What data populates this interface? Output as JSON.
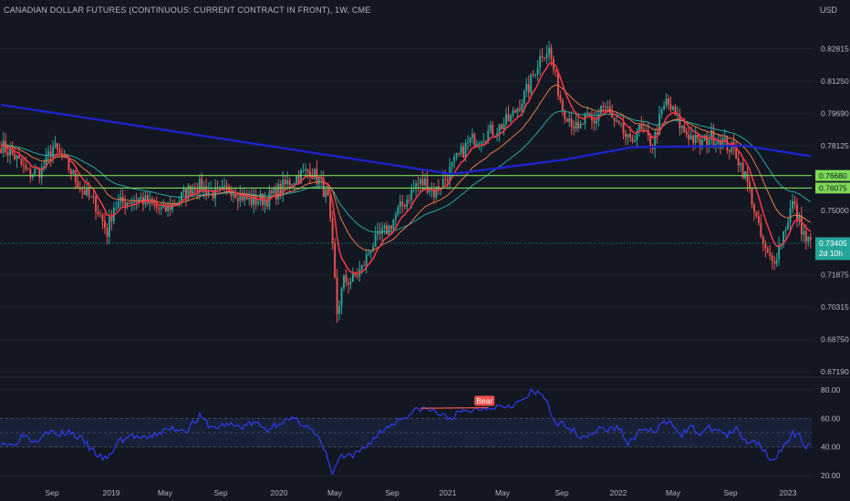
{
  "header": {
    "title": "CANADIAN DOLLAR FUTURES (CONTINUOUS: CURRENT CONTRACT IN FRONT), 1W, CME",
    "currency": "USD"
  },
  "colors": {
    "background": "#131722",
    "up": "#26a69a",
    "down": "#ef5350",
    "ma_fast": "#f23645",
    "ma_mid": "#e57a47",
    "ma_slow": "#26a69a",
    "ma_long": "#1d22c9",
    "level_line": "#7ed957",
    "rsi": "#2f3bf0",
    "bear_tag": "#ef5350",
    "last_price_tag": "#26a69a"
  },
  "chart_data": [
    {
      "type": "candlestick",
      "timeframe": "1W",
      "ylim": [
        0.6719,
        0.8438
      ],
      "y_ticks": [
        "0.82815",
        "0.81250",
        "0.79690",
        "0.78125",
        "0.76680",
        "0.76075",
        "0.75000",
        "0.73405",
        "0.71875",
        "0.70315",
        "0.68750",
        "0.67190"
      ],
      "x_ticks": [
        "Sep",
        "2019",
        "May",
        "Sep",
        "2020",
        "May",
        "Sep",
        "2021",
        "May",
        "Sep",
        "2022",
        "May",
        "Sep",
        "2023"
      ],
      "horizontal_levels": [
        0.7668,
        0.76075
      ],
      "last_price": {
        "value": "0.73405",
        "countdown": "2d 10h"
      },
      "anchors": [
        [
          0,
          0.7815
        ],
        [
          6,
          0.776
        ],
        [
          12,
          0.7675
        ],
        [
          18,
          0.7695
        ],
        [
          23,
          0.7805
        ],
        [
          28,
          0.774
        ],
        [
          35,
          0.7615
        ],
        [
          42,
          0.7525
        ],
        [
          47,
          0.7395
        ],
        [
          50,
          0.752
        ],
        [
          56,
          0.7545
        ],
        [
          62,
          0.7555
        ],
        [
          68,
          0.7515
        ],
        [
          72,
          0.7495
        ],
        [
          78,
          0.7545
        ],
        [
          86,
          0.7625
        ],
        [
          96,
          0.7575
        ],
        [
          102,
          0.7605
        ],
        [
          110,
          0.7545
        ],
        [
          118,
          0.7555
        ],
        [
          124,
          0.7605
        ],
        [
          130,
          0.7655
        ],
        [
          137,
          0.7695
        ],
        [
          142,
          0.7625
        ],
        [
          145,
          0.7545
        ],
        [
          147,
          0.7305
        ],
        [
          149,
          0.7005
        ],
        [
          152,
          0.7155
        ],
        [
          156,
          0.7165
        ],
        [
          160,
          0.7215
        ],
        [
          164,
          0.7325
        ],
        [
          168,
          0.7375
        ],
        [
          172,
          0.7415
        ],
        [
          176,
          0.7495
        ],
        [
          180,
          0.7555
        ],
        [
          184,
          0.7625
        ],
        [
          188,
          0.7635
        ],
        [
          192,
          0.7585
        ],
        [
          197,
          0.7655
        ],
        [
          202,
          0.7745
        ],
        [
          208,
          0.7835
        ],
        [
          214,
          0.7865
        ],
        [
          220,
          0.7895
        ],
        [
          226,
          0.7945
        ],
        [
          230,
          0.8015
        ],
        [
          234,
          0.8095
        ],
        [
          237,
          0.8185
        ],
        [
          240,
          0.8265
        ],
        [
          243,
          0.8275
        ],
        [
          246,
          0.8135
        ],
        [
          249,
          0.7995
        ],
        [
          253,
          0.7935
        ],
        [
          256,
          0.7875
        ],
        [
          259,
          0.7945
        ],
        [
          263,
          0.7915
        ],
        [
          266,
          0.8005
        ],
        [
          269,
          0.7985
        ],
        [
          272,
          0.7915
        ],
        [
          276,
          0.7875
        ],
        [
          279,
          0.7815
        ],
        [
          282,
          0.7895
        ],
        [
          285,
          0.7865
        ],
        [
          289,
          0.7815
        ],
        [
          292,
          0.7935
        ],
        [
          295,
          0.8025
        ],
        [
          298,
          0.7975
        ],
        [
          302,
          0.7895
        ],
        [
          306,
          0.7855
        ],
        [
          310,
          0.7815
        ],
        [
          314,
          0.7855
        ],
        [
          318,
          0.7845
        ],
        [
          322,
          0.7815
        ],
        [
          326,
          0.7775
        ],
        [
          330,
          0.7665
        ],
        [
          333,
          0.7555
        ],
        [
          336,
          0.7405
        ],
        [
          339,
          0.7295
        ],
        [
          342,
          0.7245
        ],
        [
          345,
          0.7325
        ],
        [
          348,
          0.7425
        ],
        [
          351,
          0.7535
        ],
        [
          354,
          0.7445
        ],
        [
          357,
          0.7355
        ],
        [
          359,
          0.7345
        ]
      ]
    },
    {
      "type": "line",
      "indicator": "RSI",
      "ylim": [
        15,
        85
      ],
      "y_ticks": [
        "80.00",
        "60.00",
        "40.00",
        "20.00"
      ],
      "band": [
        40,
        60
      ],
      "annotation": {
        "text": "Bear",
        "from": [
          186,
          67.0
        ],
        "to": [
          216,
          67.5
        ]
      },
      "values": [
        [
          0,
          44
        ],
        [
          5,
          41
        ],
        [
          10,
          49
        ],
        [
          15,
          44
        ],
        [
          20,
          52
        ],
        [
          25,
          48
        ],
        [
          30,
          51
        ],
        [
          36,
          45
        ],
        [
          40,
          38
        ],
        [
          44,
          33
        ],
        [
          47,
          31
        ],
        [
          52,
          44
        ],
        [
          58,
          48
        ],
        [
          64,
          45
        ],
        [
          70,
          50
        ],
        [
          76,
          53
        ],
        [
          82,
          52
        ],
        [
          88,
          61
        ],
        [
          94,
          53
        ],
        [
          100,
          56
        ],
        [
          106,
          54
        ],
        [
          112,
          57
        ],
        [
          118,
          52
        ],
        [
          124,
          58
        ],
        [
          130,
          59
        ],
        [
          136,
          55
        ],
        [
          141,
          45
        ],
        [
          145,
          32
        ],
        [
          147,
          20
        ],
        [
          150,
          33
        ],
        [
          156,
          33
        ],
        [
          162,
          41
        ],
        [
          168,
          50
        ],
        [
          174,
          57
        ],
        [
          180,
          62
        ],
        [
          186,
          67
        ],
        [
          192,
          65
        ],
        [
          198,
          60
        ],
        [
          204,
          64
        ],
        [
          210,
          66
        ],
        [
          216,
          68
        ],
        [
          222,
          69
        ],
        [
          228,
          70
        ],
        [
          232,
          73
        ],
        [
          235,
          78
        ],
        [
          239,
          77
        ],
        [
          242,
          73
        ],
        [
          246,
          54
        ],
        [
          250,
          57
        ],
        [
          254,
          51
        ],
        [
          258,
          47
        ],
        [
          262,
          50
        ],
        [
          266,
          53
        ],
        [
          270,
          52
        ],
        [
          274,
          54
        ],
        [
          278,
          42
        ],
        [
          282,
          49
        ],
        [
          286,
          53
        ],
        [
          290,
          50
        ],
        [
          294,
          57
        ],
        [
          298,
          56
        ],
        [
          302,
          49
        ],
        [
          306,
          54
        ],
        [
          310,
          49
        ],
        [
          314,
          53
        ],
        [
          318,
          52
        ],
        [
          322,
          48
        ],
        [
          326,
          52
        ],
        [
          330,
          44
        ],
        [
          334,
          45
        ],
        [
          338,
          39
        ],
        [
          342,
          31
        ],
        [
          345,
          36
        ],
        [
          348,
          41
        ],
        [
          351,
          49
        ],
        [
          354,
          47
        ],
        [
          357,
          41
        ],
        [
          359,
          42
        ]
      ]
    }
  ]
}
